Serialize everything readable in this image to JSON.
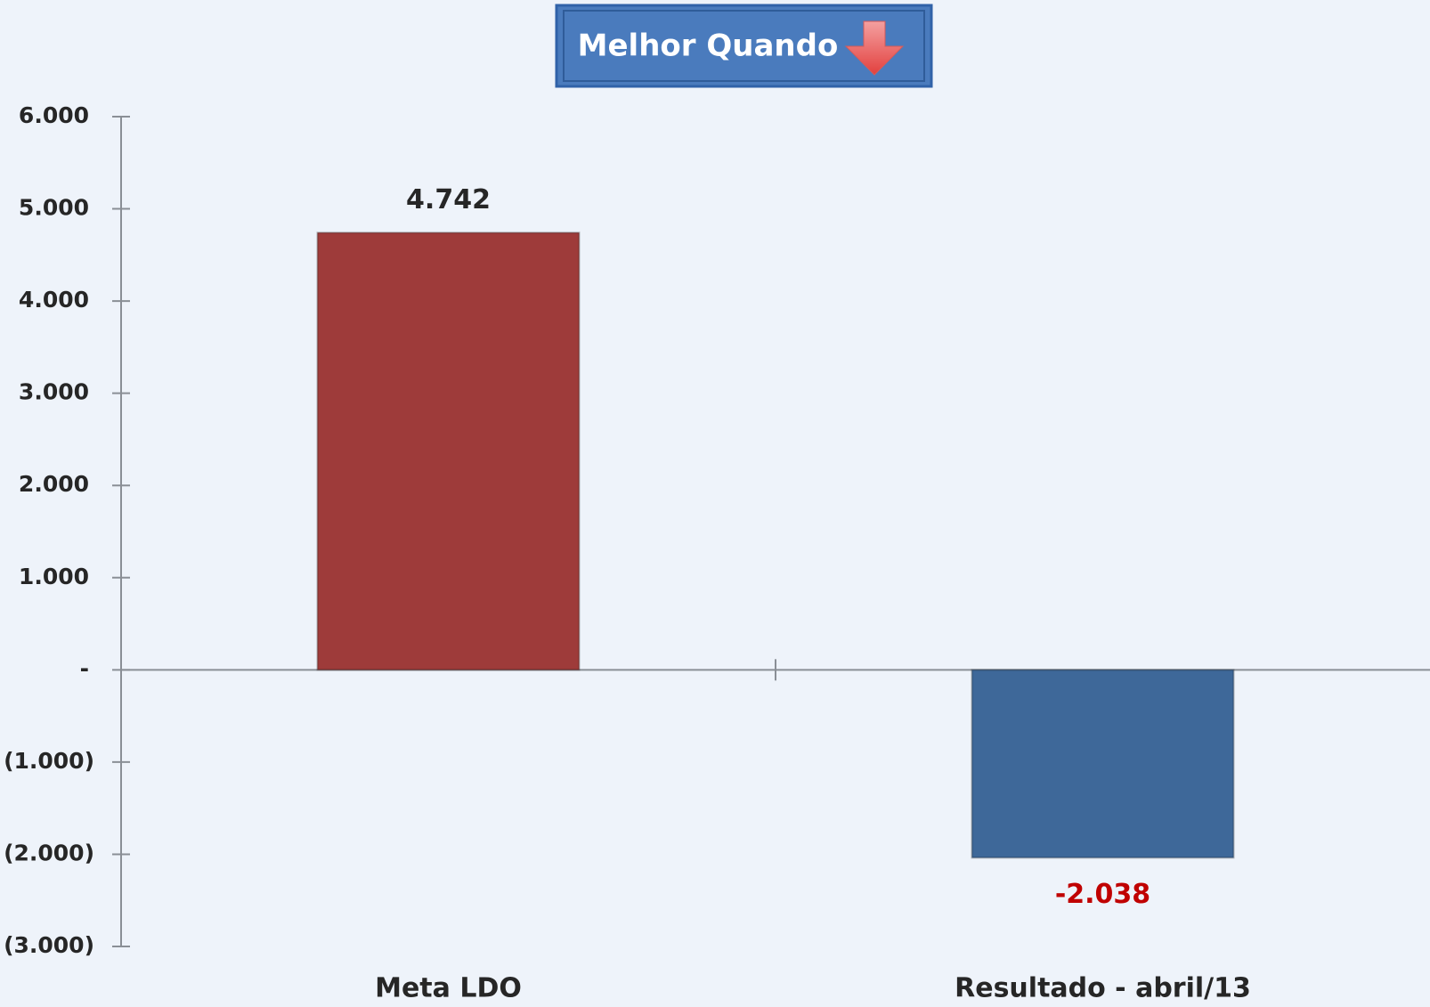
{
  "chart_data": {
    "type": "bar",
    "title": "Melhor Quando",
    "categories": [
      "Meta LDO",
      "Resultado - abril/13"
    ],
    "values": [
      4742,
      -2038
    ],
    "value_labels": [
      "4.742",
      "-2.038"
    ],
    "colors": [
      "#9e3b3a",
      "#3e6899"
    ],
    "value_label_colors": [
      "#262626",
      "#c00000"
    ],
    "ylim": [
      -3000,
      6000
    ],
    "yticks": [
      {
        "value": 6000,
        "label": "6.000"
      },
      {
        "value": 5000,
        "label": "5.000"
      },
      {
        "value": 4000,
        "label": "4.000"
      },
      {
        "value": 3000,
        "label": "3.000"
      },
      {
        "value": 2000,
        "label": "2.000"
      },
      {
        "value": 1000,
        "label": "1.000"
      },
      {
        "value": 0,
        "label": "-"
      },
      {
        "value": -1000,
        "label": "(1.000)"
      },
      {
        "value": -2000,
        "label": "(2.000)"
      },
      {
        "value": -3000,
        "label": "(3.000)"
      }
    ],
    "grid": false
  }
}
